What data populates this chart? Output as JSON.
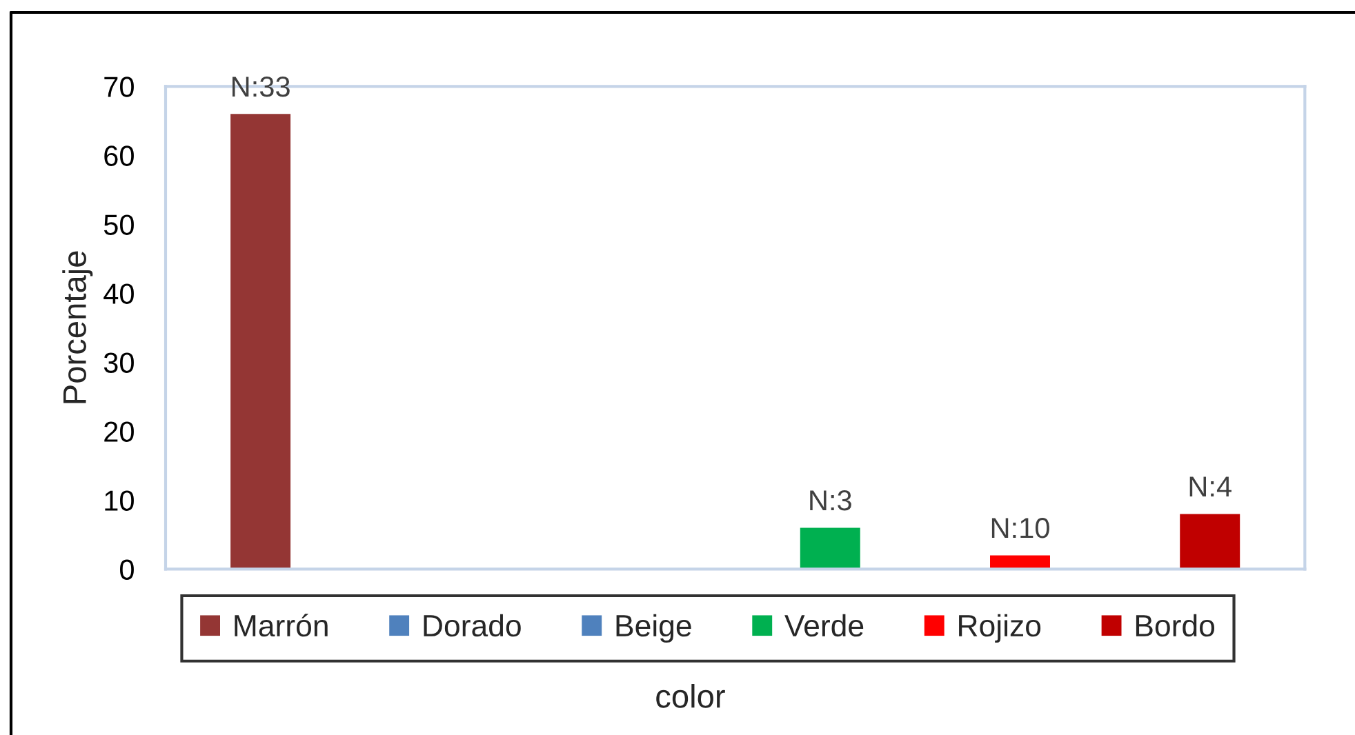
{
  "chart_data": {
    "type": "bar",
    "ylabel": "Porcentaje",
    "xlabel": "color",
    "categories": [
      null
    ],
    "series": [
      {
        "name": "Marrón",
        "color": "#943634",
        "values": [
          66
        ]
      },
      {
        "name": "Dorado",
        "color": "#4f81bd",
        "values": [
          0
        ]
      },
      {
        "name": "Beige",
        "color": "#4f81bd",
        "values": [
          0
        ]
      },
      {
        "name": "Verde",
        "color": "#00b050",
        "values": [
          6
        ]
      },
      {
        "name": "Rojizo",
        "color": "#ff0000",
        "values": [
          2
        ]
      },
      {
        "name": "Bordo",
        "color": "#c00000",
        "values": [
          8
        ]
      }
    ],
    "annotations": [
      {
        "text": "N:33",
        "y": 66
      },
      {
        "text": "N:3",
        "y": 6
      },
      {
        "text": "N:10",
        "y": 2
      },
      {
        "text": "N:4",
        "y": 8
      }
    ],
    "ylim": [
      0,
      70
    ],
    "yticks": [
      0,
      10,
      20,
      30,
      40,
      50,
      60,
      70
    ],
    "legend": "bottom"
  }
}
